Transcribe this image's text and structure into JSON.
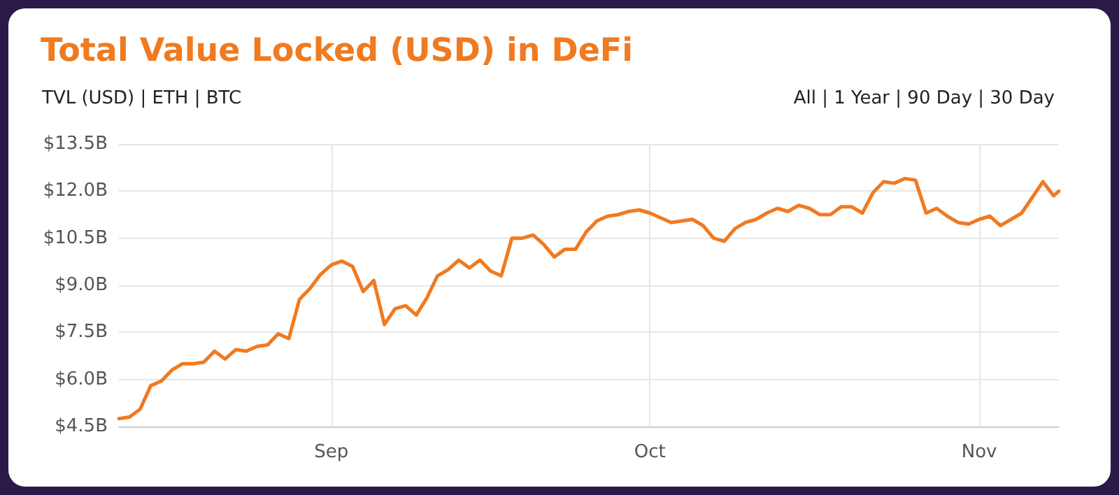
{
  "chart_data": {
    "type": "line",
    "title": "Total Value Locked (USD) in DeFi",
    "annotations": [
      "TVL (USD) | ETH | BTC",
      "All | 1 Year | 90 Day | 30 Day"
    ],
    "x": [
      "--08-12",
      "--08-13",
      "--08-14",
      "--08-15",
      "--08-16",
      "--08-17",
      "--08-18",
      "--08-19",
      "--08-20",
      "--08-21",
      "--08-22",
      "--08-23",
      "--08-24",
      "--08-25",
      "--08-26",
      "--08-27",
      "--08-28",
      "--08-29",
      "--08-30",
      "--08-31",
      "--09-01",
      "--09-02",
      "--09-03",
      "--09-04",
      "--09-05",
      "--09-06",
      "--09-07",
      "--09-08",
      "--09-09",
      "--09-10",
      "--09-11",
      "--09-12",
      "--09-13",
      "--09-14",
      "--09-15",
      "--09-16",
      "--09-17",
      "--09-18",
      "--09-19",
      "--09-20",
      "--09-21",
      "--09-22",
      "--09-23",
      "--09-24",
      "--09-25",
      "--09-26",
      "--09-27",
      "--09-28",
      "--09-29",
      "--09-30",
      "--10-01",
      "--10-02",
      "--10-03",
      "--10-04",
      "--10-05",
      "--10-06",
      "--10-07",
      "--10-08",
      "--10-09",
      "--10-10",
      "--10-11",
      "--10-12",
      "--10-13",
      "--10-14",
      "--10-15",
      "--10-16",
      "--10-17",
      "--10-18",
      "--10-19",
      "--10-20",
      "--10-21",
      "--10-22",
      "--10-23",
      "--10-24",
      "--10-25",
      "--10-26",
      "--10-27",
      "--10-28",
      "--10-29",
      "--10-30",
      "--10-31",
      "--11-01",
      "--11-02",
      "--11-03",
      "--11-04",
      "--11-05",
      "--11-06",
      "--11-07",
      "--11-08",
      "--11-08T12:00"
    ],
    "series": [
      {
        "color": "#f07a20",
        "values": [
          4.75,
          4.8,
          5.05,
          5.8,
          5.95,
          6.3,
          6.5,
          6.5,
          6.55,
          6.9,
          6.65,
          6.95,
          6.9,
          7.05,
          7.1,
          7.45,
          7.3,
          8.55,
          8.9,
          9.35,
          9.65,
          9.77,
          9.6,
          8.8,
          9.15,
          7.75,
          8.25,
          8.35,
          8.05,
          8.6,
          9.3,
          9.5,
          9.8,
          9.55,
          9.8,
          9.45,
          9.3,
          10.5,
          10.5,
          10.6,
          10.3,
          9.9,
          10.15,
          10.15,
          10.7,
          11.05,
          11.2,
          11.25,
          11.35,
          11.4,
          11.3,
          11.15,
          11.0,
          11.05,
          11.1,
          10.9,
          10.5,
          10.4,
          10.8,
          11.0,
          11.1,
          11.3,
          11.45,
          11.35,
          11.55,
          11.45,
          11.25,
          11.25,
          11.5,
          11.5,
          11.3,
          11.95,
          12.3,
          12.25,
          12.4,
          12.35,
          11.3,
          11.45,
          11.2,
          11.0,
          10.95,
          11.1,
          11.2,
          10.9,
          11.1,
          11.3,
          11.8,
          12.3,
          11.85,
          12.0
        ]
      }
    ],
    "xlim": [
      "--08-12",
      "--11-08T12:00"
    ],
    "xticks": [
      {
        "value": "--09-01",
        "label": "Sep"
      },
      {
        "value": "--10-01",
        "label": "Oct"
      },
      {
        "value": "--11-01",
        "label": "Nov"
      }
    ],
    "ylim": [
      4.5,
      13.5
    ],
    "yticks": [
      {
        "value": 4.5,
        "label": "$4.5B"
      },
      {
        "value": 6,
        "label": "$6.0B"
      },
      {
        "value": 7.5,
        "label": "$7.5B"
      },
      {
        "value": 9,
        "label": "$9.0B"
      },
      {
        "value": 10.5,
        "label": "$10.5B"
      },
      {
        "value": 12,
        "label": "$12.0B"
      },
      {
        "value": 13.5,
        "label": "$13.5B"
      }
    ],
    "grid": true,
    "marker": "none",
    "line_style": "solid"
  }
}
